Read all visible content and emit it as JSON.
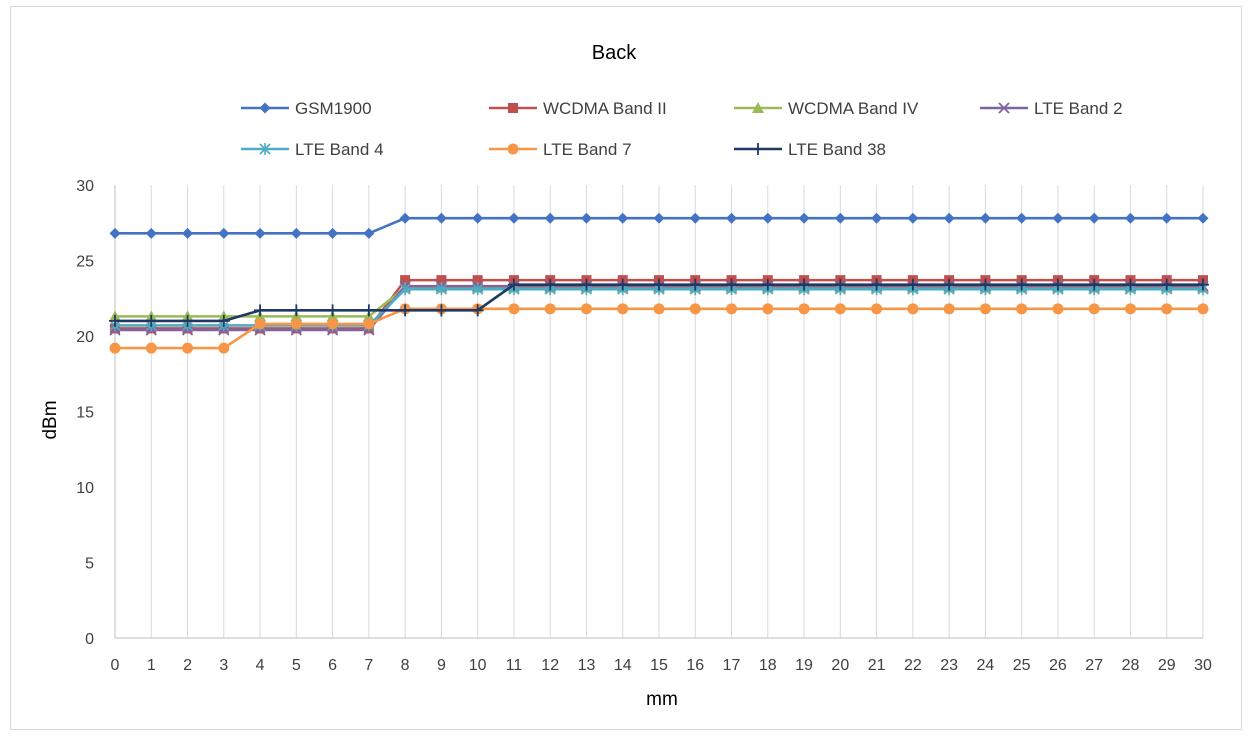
{
  "chart_data": {
    "type": "line",
    "title": "Back",
    "xlabel": "mm",
    "ylabel": "dBm",
    "x": [
      0,
      1,
      2,
      3,
      4,
      5,
      6,
      7,
      8,
      9,
      10,
      11,
      12,
      13,
      14,
      15,
      16,
      17,
      18,
      19,
      20,
      21,
      22,
      23,
      24,
      25,
      26,
      27,
      28,
      29,
      30
    ],
    "ylim": [
      0,
      30
    ],
    "yticks": [
      0,
      5,
      10,
      15,
      20,
      25,
      30
    ],
    "grid": "vertical",
    "legend_position": "top",
    "series": [
      {
        "name": "GSM1900",
        "color": "#4472c4",
        "marker": "diamond",
        "values": [
          26.8,
          26.8,
          26.8,
          26.8,
          26.8,
          26.8,
          26.8,
          26.8,
          27.8,
          27.8,
          27.8,
          27.8,
          27.8,
          27.8,
          27.8,
          27.8,
          27.8,
          27.8,
          27.8,
          27.8,
          27.8,
          27.8,
          27.8,
          27.8,
          27.8,
          27.8,
          27.8,
          27.8,
          27.8,
          27.8,
          27.8
        ]
      },
      {
        "name": "WCDMA Band II",
        "color": "#c0504d",
        "marker": "square",
        "values": [
          20.5,
          20.5,
          20.5,
          20.5,
          20.5,
          20.5,
          20.5,
          20.5,
          23.7,
          23.7,
          23.7,
          23.7,
          23.7,
          23.7,
          23.7,
          23.7,
          23.7,
          23.7,
          23.7,
          23.7,
          23.7,
          23.7,
          23.7,
          23.7,
          23.7,
          23.7,
          23.7,
          23.7,
          23.7,
          23.7,
          23.7
        ]
      },
      {
        "name": "WCDMA Band IV",
        "color": "#9bbb59",
        "marker": "triangle",
        "values": [
          21.3,
          21.3,
          21.3,
          21.3,
          21.3,
          21.3,
          21.3,
          21.3,
          23.2,
          23.2,
          23.2,
          23.2,
          23.2,
          23.2,
          23.2,
          23.2,
          23.2,
          23.2,
          23.2,
          23.2,
          23.2,
          23.2,
          23.2,
          23.2,
          23.2,
          23.2,
          23.2,
          23.2,
          23.2,
          23.2,
          23.2
        ]
      },
      {
        "name": "LTE Band 2",
        "color": "#8064a2",
        "marker": "x",
        "values": [
          20.4,
          20.4,
          20.4,
          20.4,
          20.4,
          20.4,
          20.4,
          20.4,
          23.3,
          23.3,
          23.3,
          23.3,
          23.3,
          23.3,
          23.3,
          23.3,
          23.3,
          23.3,
          23.3,
          23.3,
          23.3,
          23.3,
          23.3,
          23.3,
          23.3,
          23.3,
          23.3,
          23.3,
          23.3,
          23.3,
          23.3
        ]
      },
      {
        "name": "LTE Band 4",
        "color": "#4bacc6",
        "marker": "star",
        "values": [
          20.7,
          20.7,
          20.7,
          20.7,
          20.7,
          20.7,
          20.7,
          20.7,
          23.1,
          23.1,
          23.1,
          23.1,
          23.1,
          23.1,
          23.1,
          23.1,
          23.1,
          23.1,
          23.1,
          23.1,
          23.1,
          23.1,
          23.1,
          23.1,
          23.1,
          23.1,
          23.1,
          23.1,
          23.1,
          23.1,
          23.1
        ]
      },
      {
        "name": "LTE Band 7",
        "color": "#f79646",
        "marker": "circle",
        "values": [
          19.2,
          19.2,
          19.2,
          19.2,
          20.8,
          20.8,
          20.8,
          20.8,
          21.8,
          21.8,
          21.8,
          21.8,
          21.8,
          21.8,
          21.8,
          21.8,
          21.8,
          21.8,
          21.8,
          21.8,
          21.8,
          21.8,
          21.8,
          21.8,
          21.8,
          21.8,
          21.8,
          21.8,
          21.8,
          21.8,
          21.8
        ]
      },
      {
        "name": "LTE Band 38",
        "color": "#1f3864",
        "marker": "plus",
        "values": [
          21.0,
          21.0,
          21.0,
          21.0,
          21.7,
          21.7,
          21.7,
          21.7,
          21.7,
          21.7,
          21.7,
          23.4,
          23.4,
          23.4,
          23.4,
          23.4,
          23.4,
          23.4,
          23.4,
          23.4,
          23.4,
          23.4,
          23.4,
          23.4,
          23.4,
          23.4,
          23.4,
          23.4,
          23.4,
          23.4,
          23.4
        ]
      }
    ]
  }
}
